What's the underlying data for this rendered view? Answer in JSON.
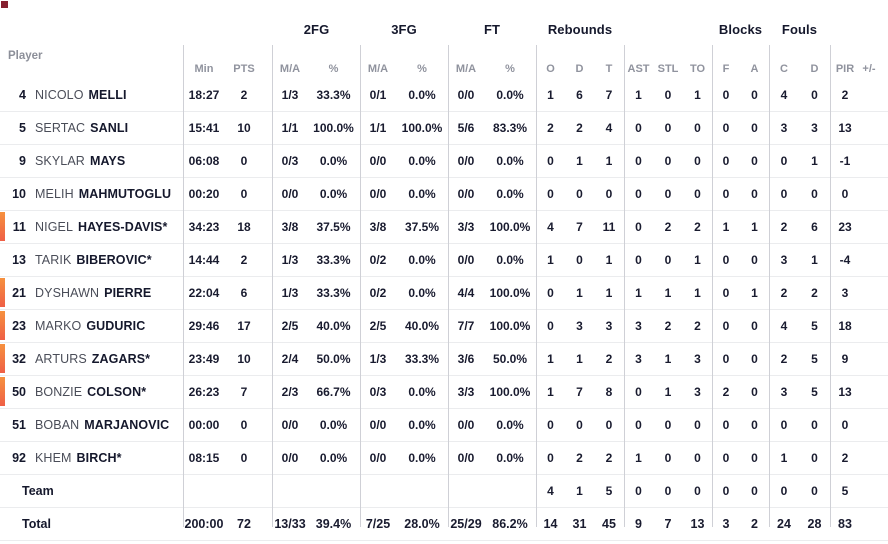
{
  "colors": {
    "on_court_bar_top": "#f6913e",
    "on_court_bar_bottom": "#ef5f46",
    "logo_fragment": "#86202f",
    "divider": "#cfd0d6"
  },
  "table": {
    "player_header": "Player",
    "groups": [
      {
        "label": "2FG"
      },
      {
        "label": "3FG"
      },
      {
        "label": "FT"
      },
      {
        "label": "Rebounds"
      },
      {
        "label": "Blocks"
      },
      {
        "label": "Fouls"
      }
    ],
    "columns": [
      "Min",
      "PTS",
      "M/A",
      "%",
      "M/A",
      "%",
      "M/A",
      "%",
      "O",
      "D",
      "T",
      "AST",
      "STL",
      "TO",
      "F",
      "A",
      "C",
      "D",
      "PIR",
      "+/-"
    ],
    "rows": [
      {
        "number": "4",
        "first": "NICOLO",
        "last": "MELLI",
        "oncourt": false,
        "stats": [
          "18:27",
          "2",
          "1/3",
          "33.3%",
          "0/1",
          "0.0%",
          "0/0",
          "0.0%",
          "1",
          "6",
          "7",
          "1",
          "0",
          "1",
          "0",
          "0",
          "4",
          "0",
          "2",
          ""
        ]
      },
      {
        "number": "5",
        "first": "SERTAC",
        "last": "SANLI",
        "oncourt": false,
        "stats": [
          "15:41",
          "10",
          "1/1",
          "100.0%",
          "1/1",
          "100.0%",
          "5/6",
          "83.3%",
          "2",
          "2",
          "4",
          "0",
          "0",
          "0",
          "0",
          "0",
          "3",
          "3",
          "13",
          ""
        ]
      },
      {
        "number": "9",
        "first": "SKYLAR",
        "last": "MAYS",
        "oncourt": false,
        "stats": [
          "06:08",
          "0",
          "0/3",
          "0.0%",
          "0/0",
          "0.0%",
          "0/0",
          "0.0%",
          "0",
          "1",
          "1",
          "0",
          "0",
          "0",
          "0",
          "0",
          "0",
          "1",
          "-1",
          ""
        ]
      },
      {
        "number": "10",
        "first": "MELIH",
        "last": "MAHMUTOGLU",
        "oncourt": false,
        "stats": [
          "00:20",
          "0",
          "0/0",
          "0.0%",
          "0/0",
          "0.0%",
          "0/0",
          "0.0%",
          "0",
          "0",
          "0",
          "0",
          "0",
          "0",
          "0",
          "0",
          "0",
          "0",
          "0",
          ""
        ]
      },
      {
        "number": "11",
        "first": "NIGEL",
        "last": "HAYES-DAVIS*",
        "oncourt": true,
        "stats": [
          "34:23",
          "18",
          "3/8",
          "37.5%",
          "3/8",
          "37.5%",
          "3/3",
          "100.0%",
          "4",
          "7",
          "11",
          "0",
          "2",
          "2",
          "1",
          "1",
          "2",
          "6",
          "23",
          ""
        ]
      },
      {
        "number": "13",
        "first": "TARIK",
        "last": "BIBEROVIC*",
        "oncourt": false,
        "stats": [
          "14:44",
          "2",
          "1/3",
          "33.3%",
          "0/2",
          "0.0%",
          "0/0",
          "0.0%",
          "1",
          "0",
          "1",
          "0",
          "0",
          "1",
          "0",
          "0",
          "3",
          "1",
          "-4",
          ""
        ]
      },
      {
        "number": "21",
        "first": "DYSHAWN",
        "last": "PIERRE",
        "oncourt": true,
        "stats": [
          "22:04",
          "6",
          "1/3",
          "33.3%",
          "0/2",
          "0.0%",
          "4/4",
          "100.0%",
          "0",
          "1",
          "1",
          "1",
          "1",
          "1",
          "0",
          "1",
          "2",
          "2",
          "3",
          ""
        ]
      },
      {
        "number": "23",
        "first": "MARKO",
        "last": "GUDURIC",
        "oncourt": true,
        "stats": [
          "29:46",
          "17",
          "2/5",
          "40.0%",
          "2/5",
          "40.0%",
          "7/7",
          "100.0%",
          "0",
          "3",
          "3",
          "3",
          "2",
          "2",
          "0",
          "0",
          "4",
          "5",
          "18",
          ""
        ]
      },
      {
        "number": "32",
        "first": "ARTURS",
        "last": "ZAGARS*",
        "oncourt": true,
        "stats": [
          "23:49",
          "10",
          "2/4",
          "50.0%",
          "1/3",
          "33.3%",
          "3/6",
          "50.0%",
          "1",
          "1",
          "2",
          "3",
          "1",
          "3",
          "0",
          "0",
          "2",
          "5",
          "9",
          ""
        ]
      },
      {
        "number": "50",
        "first": "BONZIE",
        "last": "COLSON*",
        "oncourt": true,
        "stats": [
          "26:23",
          "7",
          "2/3",
          "66.7%",
          "0/3",
          "0.0%",
          "3/3",
          "100.0%",
          "1",
          "7",
          "8",
          "0",
          "1",
          "3",
          "2",
          "0",
          "3",
          "5",
          "13",
          ""
        ]
      },
      {
        "number": "51",
        "first": "BOBAN",
        "last": "MARJANOVIC",
        "oncourt": false,
        "stats": [
          "00:00",
          "0",
          "0/0",
          "0.0%",
          "0/0",
          "0.0%",
          "0/0",
          "0.0%",
          "0",
          "0",
          "0",
          "0",
          "0",
          "0",
          "0",
          "0",
          "0",
          "0",
          "0",
          ""
        ]
      },
      {
        "number": "92",
        "first": "KHEM",
        "last": "BIRCH*",
        "oncourt": false,
        "stats": [
          "08:15",
          "0",
          "0/0",
          "0.0%",
          "0/0",
          "0.0%",
          "0/0",
          "0.0%",
          "0",
          "2",
          "2",
          "1",
          "0",
          "0",
          "0",
          "0",
          "1",
          "0",
          "2",
          ""
        ]
      },
      {
        "label": "Team",
        "stats": [
          "",
          "",
          "",
          "",
          "",
          "",
          "",
          "",
          "4",
          "1",
          "5",
          "0",
          "0",
          "0",
          "0",
          "0",
          "0",
          "0",
          "5",
          ""
        ]
      },
      {
        "label": "Total",
        "bold": true,
        "stats": [
          "200:00",
          "72",
          "13/33",
          "39.4%",
          "7/25",
          "28.0%",
          "25/29",
          "86.2%",
          "14",
          "31",
          "45",
          "9",
          "7",
          "13",
          "3",
          "2",
          "24",
          "28",
          "83",
          ""
        ]
      }
    ]
  }
}
